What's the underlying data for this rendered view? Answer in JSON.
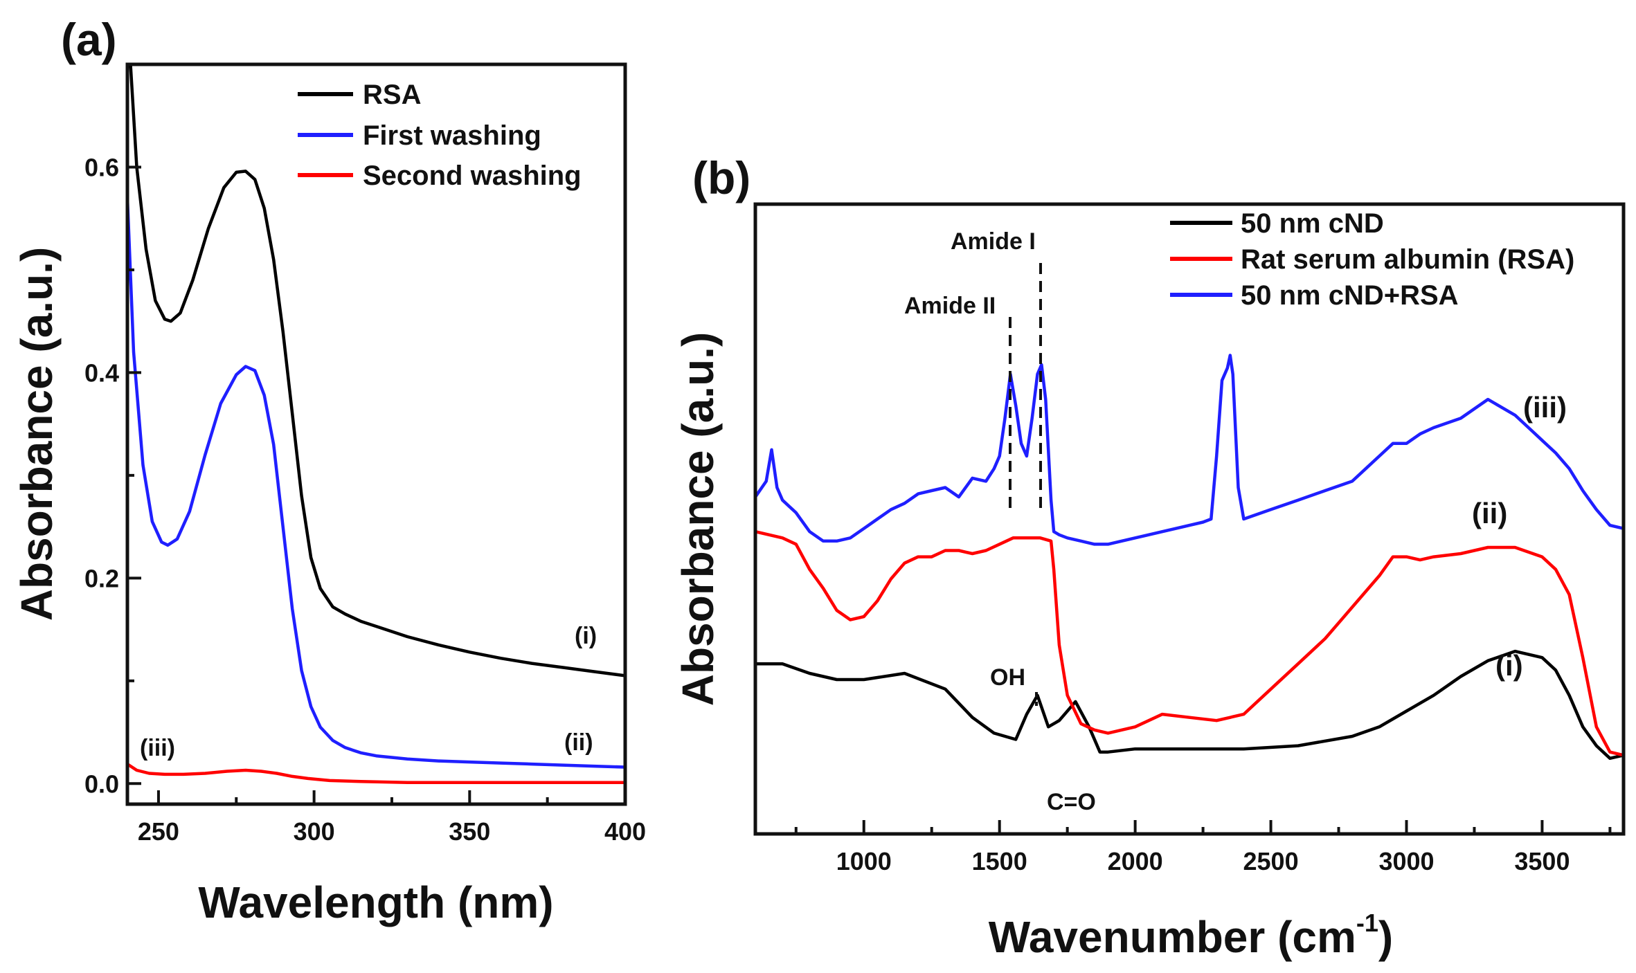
{
  "chart_data": [
    {
      "panel_label": "(a)",
      "type": "line",
      "xlabel": "Wavelength (nm)",
      "ylabel": "Absorbance (a.u.)",
      "xlim": [
        240,
        400
      ],
      "ylim": [
        -0.02,
        0.7
      ],
      "xticks": [
        250,
        300,
        350,
        400
      ],
      "xtick_labels": [
        "250",
        "300",
        "350",
        "400"
      ],
      "yticks": [
        0.0,
        0.2,
        0.4,
        0.6
      ],
      "ytick_labels": [
        "0.0",
        "0.2",
        "0.4",
        "0.6"
      ],
      "legend_position": "top-right",
      "series": [
        {
          "name": "RSA",
          "color": "#000000",
          "label": "(i)",
          "x": [
            241,
            243,
            246,
            249,
            252,
            254,
            257,
            261,
            266,
            271,
            275,
            278,
            281,
            284,
            287,
            290,
            293,
            296,
            299,
            302,
            306,
            310,
            315,
            320,
            330,
            340,
            350,
            360,
            370,
            380,
            390,
            400
          ],
          "y": [
            0.7,
            0.6,
            0.52,
            0.47,
            0.452,
            0.45,
            0.458,
            0.49,
            0.54,
            0.58,
            0.595,
            0.596,
            0.588,
            0.56,
            0.51,
            0.44,
            0.36,
            0.28,
            0.22,
            0.19,
            0.172,
            0.165,
            0.158,
            0.153,
            0.143,
            0.135,
            0.128,
            0.122,
            0.117,
            0.113,
            0.109,
            0.105
          ]
        },
        {
          "name": "First washing",
          "color": "#1f1fff",
          "label": "(ii)",
          "x": [
            240,
            242,
            245,
            248,
            251,
            253,
            256,
            260,
            265,
            270,
            275,
            278,
            281,
            284,
            287,
            290,
            293,
            296,
            299,
            302,
            306,
            310,
            315,
            320,
            330,
            340,
            350,
            360,
            370,
            380,
            390,
            400
          ],
          "y": [
            0.57,
            0.42,
            0.31,
            0.255,
            0.235,
            0.232,
            0.238,
            0.265,
            0.32,
            0.37,
            0.398,
            0.406,
            0.402,
            0.378,
            0.33,
            0.25,
            0.17,
            0.11,
            0.075,
            0.055,
            0.042,
            0.035,
            0.03,
            0.027,
            0.024,
            0.022,
            0.021,
            0.02,
            0.019,
            0.018,
            0.017,
            0.016
          ]
        },
        {
          "name": "Second washing",
          "color": "#ff0000",
          "label": "(iii)",
          "x": [
            240,
            243,
            247,
            252,
            258,
            265,
            272,
            278,
            283,
            288,
            293,
            298,
            305,
            315,
            330,
            350,
            370,
            390,
            400
          ],
          "y": [
            0.019,
            0.013,
            0.01,
            0.009,
            0.009,
            0.01,
            0.012,
            0.013,
            0.012,
            0.01,
            0.007,
            0.005,
            0.003,
            0.002,
            0.001,
            0.001,
            0.001,
            0.001,
            0.001
          ]
        }
      ]
    },
    {
      "panel_label": "(b)",
      "type": "line",
      "xlabel": "Wavenumber (cm",
      "xlabel_superscript": "-1",
      "xlabel_end": ")",
      "ylabel": "Absorbance (a.u.)",
      "xlim": [
        600,
        3800
      ],
      "ylim": [
        0,
        1
      ],
      "y_ticks_shown": false,
      "xticks": [
        1000,
        1500,
        2000,
        2500,
        3000,
        3500
      ],
      "xtick_labels": [
        "1000",
        "1500",
        "2000",
        "2500",
        "3000",
        "3500"
      ],
      "legend_position": "top-right",
      "annotations": {
        "amide_ii": "Amide II",
        "amide_i": "Amide I",
        "oh": "OH",
        "co": "C=O",
        "label_i": "(i)",
        "label_ii": "(ii)",
        "label_iii": "(iii)"
      },
      "reference_lines_x": [
        1540,
        1655,
        1640
      ],
      "series": [
        {
          "name": "50 nm cND",
          "color": "#000000",
          "label": "(i)",
          "x": [
            600,
            700,
            800,
            900,
            1000,
            1150,
            1300,
            1400,
            1480,
            1560,
            1600,
            1640,
            1680,
            1720,
            1780,
            1830,
            1870,
            1900,
            2000,
            2200,
            2400,
            2600,
            2800,
            2900,
            3000,
            3100,
            3200,
            3300,
            3400,
            3500,
            3550,
            3600,
            3650,
            3700,
            3750,
            3800
          ],
          "y": [
            0.27,
            0.27,
            0.255,
            0.245,
            0.245,
            0.255,
            0.23,
            0.185,
            0.16,
            0.15,
            0.19,
            0.22,
            0.17,
            0.18,
            0.21,
            0.17,
            0.13,
            0.13,
            0.135,
            0.135,
            0.135,
            0.14,
            0.155,
            0.17,
            0.195,
            0.22,
            0.25,
            0.275,
            0.29,
            0.28,
            0.26,
            0.22,
            0.17,
            0.14,
            0.12,
            0.125
          ]
        },
        {
          "name": "Rat serum albumin (RSA)",
          "color": "#ff0000",
          "label": "(ii)",
          "x": [
            600,
            700,
            750,
            800,
            850,
            900,
            950,
            1000,
            1050,
            1100,
            1150,
            1200,
            1250,
            1300,
            1350,
            1400,
            1450,
            1500,
            1550,
            1600,
            1650,
            1690,
            1700,
            1720,
            1750,
            1800,
            1850,
            1900,
            2000,
            2100,
            2200,
            2300,
            2400,
            2500,
            2600,
            2700,
            2800,
            2900,
            2950,
            3000,
            3050,
            3100,
            3200,
            3300,
            3400,
            3500,
            3550,
            3600,
            3650,
            3700,
            3750,
            3800
          ],
          "y": [
            0.48,
            0.47,
            0.46,
            0.42,
            0.39,
            0.355,
            0.34,
            0.345,
            0.37,
            0.405,
            0.43,
            0.44,
            0.44,
            0.45,
            0.45,
            0.445,
            0.45,
            0.46,
            0.47,
            0.47,
            0.47,
            0.465,
            0.42,
            0.3,
            0.22,
            0.175,
            0.165,
            0.16,
            0.17,
            0.19,
            0.185,
            0.18,
            0.19,
            0.23,
            0.27,
            0.31,
            0.36,
            0.41,
            0.44,
            0.44,
            0.435,
            0.44,
            0.445,
            0.455,
            0.455,
            0.44,
            0.42,
            0.38,
            0.28,
            0.17,
            0.13,
            0.125
          ]
        },
        {
          "name": "50 nm cND+RSA",
          "color": "#1f1fff",
          "label": "(iii)",
          "x": [
            600,
            640,
            660,
            680,
            700,
            750,
            800,
            850,
            900,
            950,
            1000,
            1050,
            1100,
            1150,
            1200,
            1250,
            1300,
            1350,
            1400,
            1450,
            1480,
            1500,
            1520,
            1540,
            1560,
            1580,
            1600,
            1620,
            1640,
            1655,
            1670,
            1690,
            1700,
            1720,
            1750,
            1800,
            1850,
            1900,
            2000,
            2100,
            2200,
            2250,
            2280,
            2300,
            2320,
            2340,
            2350,
            2360,
            2380,
            2400,
            2500,
            2600,
            2700,
            2800,
            2850,
            2900,
            2950,
            3000,
            3050,
            3100,
            3200,
            3300,
            3400,
            3450,
            3500,
            3550,
            3600,
            3650,
            3700,
            3750,
            3800
          ],
          "y": [
            0.535,
            0.56,
            0.61,
            0.55,
            0.53,
            0.51,
            0.48,
            0.465,
            0.465,
            0.47,
            0.485,
            0.5,
            0.515,
            0.525,
            0.54,
            0.545,
            0.55,
            0.535,
            0.565,
            0.56,
            0.58,
            0.6,
            0.66,
            0.73,
            0.68,
            0.62,
            0.6,
            0.66,
            0.73,
            0.745,
            0.69,
            0.53,
            0.48,
            0.475,
            0.47,
            0.465,
            0.46,
            0.46,
            0.47,
            0.48,
            0.49,
            0.495,
            0.5,
            0.6,
            0.72,
            0.74,
            0.76,
            0.73,
            0.55,
            0.5,
            0.515,
            0.53,
            0.545,
            0.56,
            0.58,
            0.6,
            0.62,
            0.62,
            0.635,
            0.645,
            0.66,
            0.69,
            0.665,
            0.645,
            0.625,
            0.605,
            0.58,
            0.545,
            0.515,
            0.49,
            0.485
          ]
        }
      ]
    }
  ]
}
